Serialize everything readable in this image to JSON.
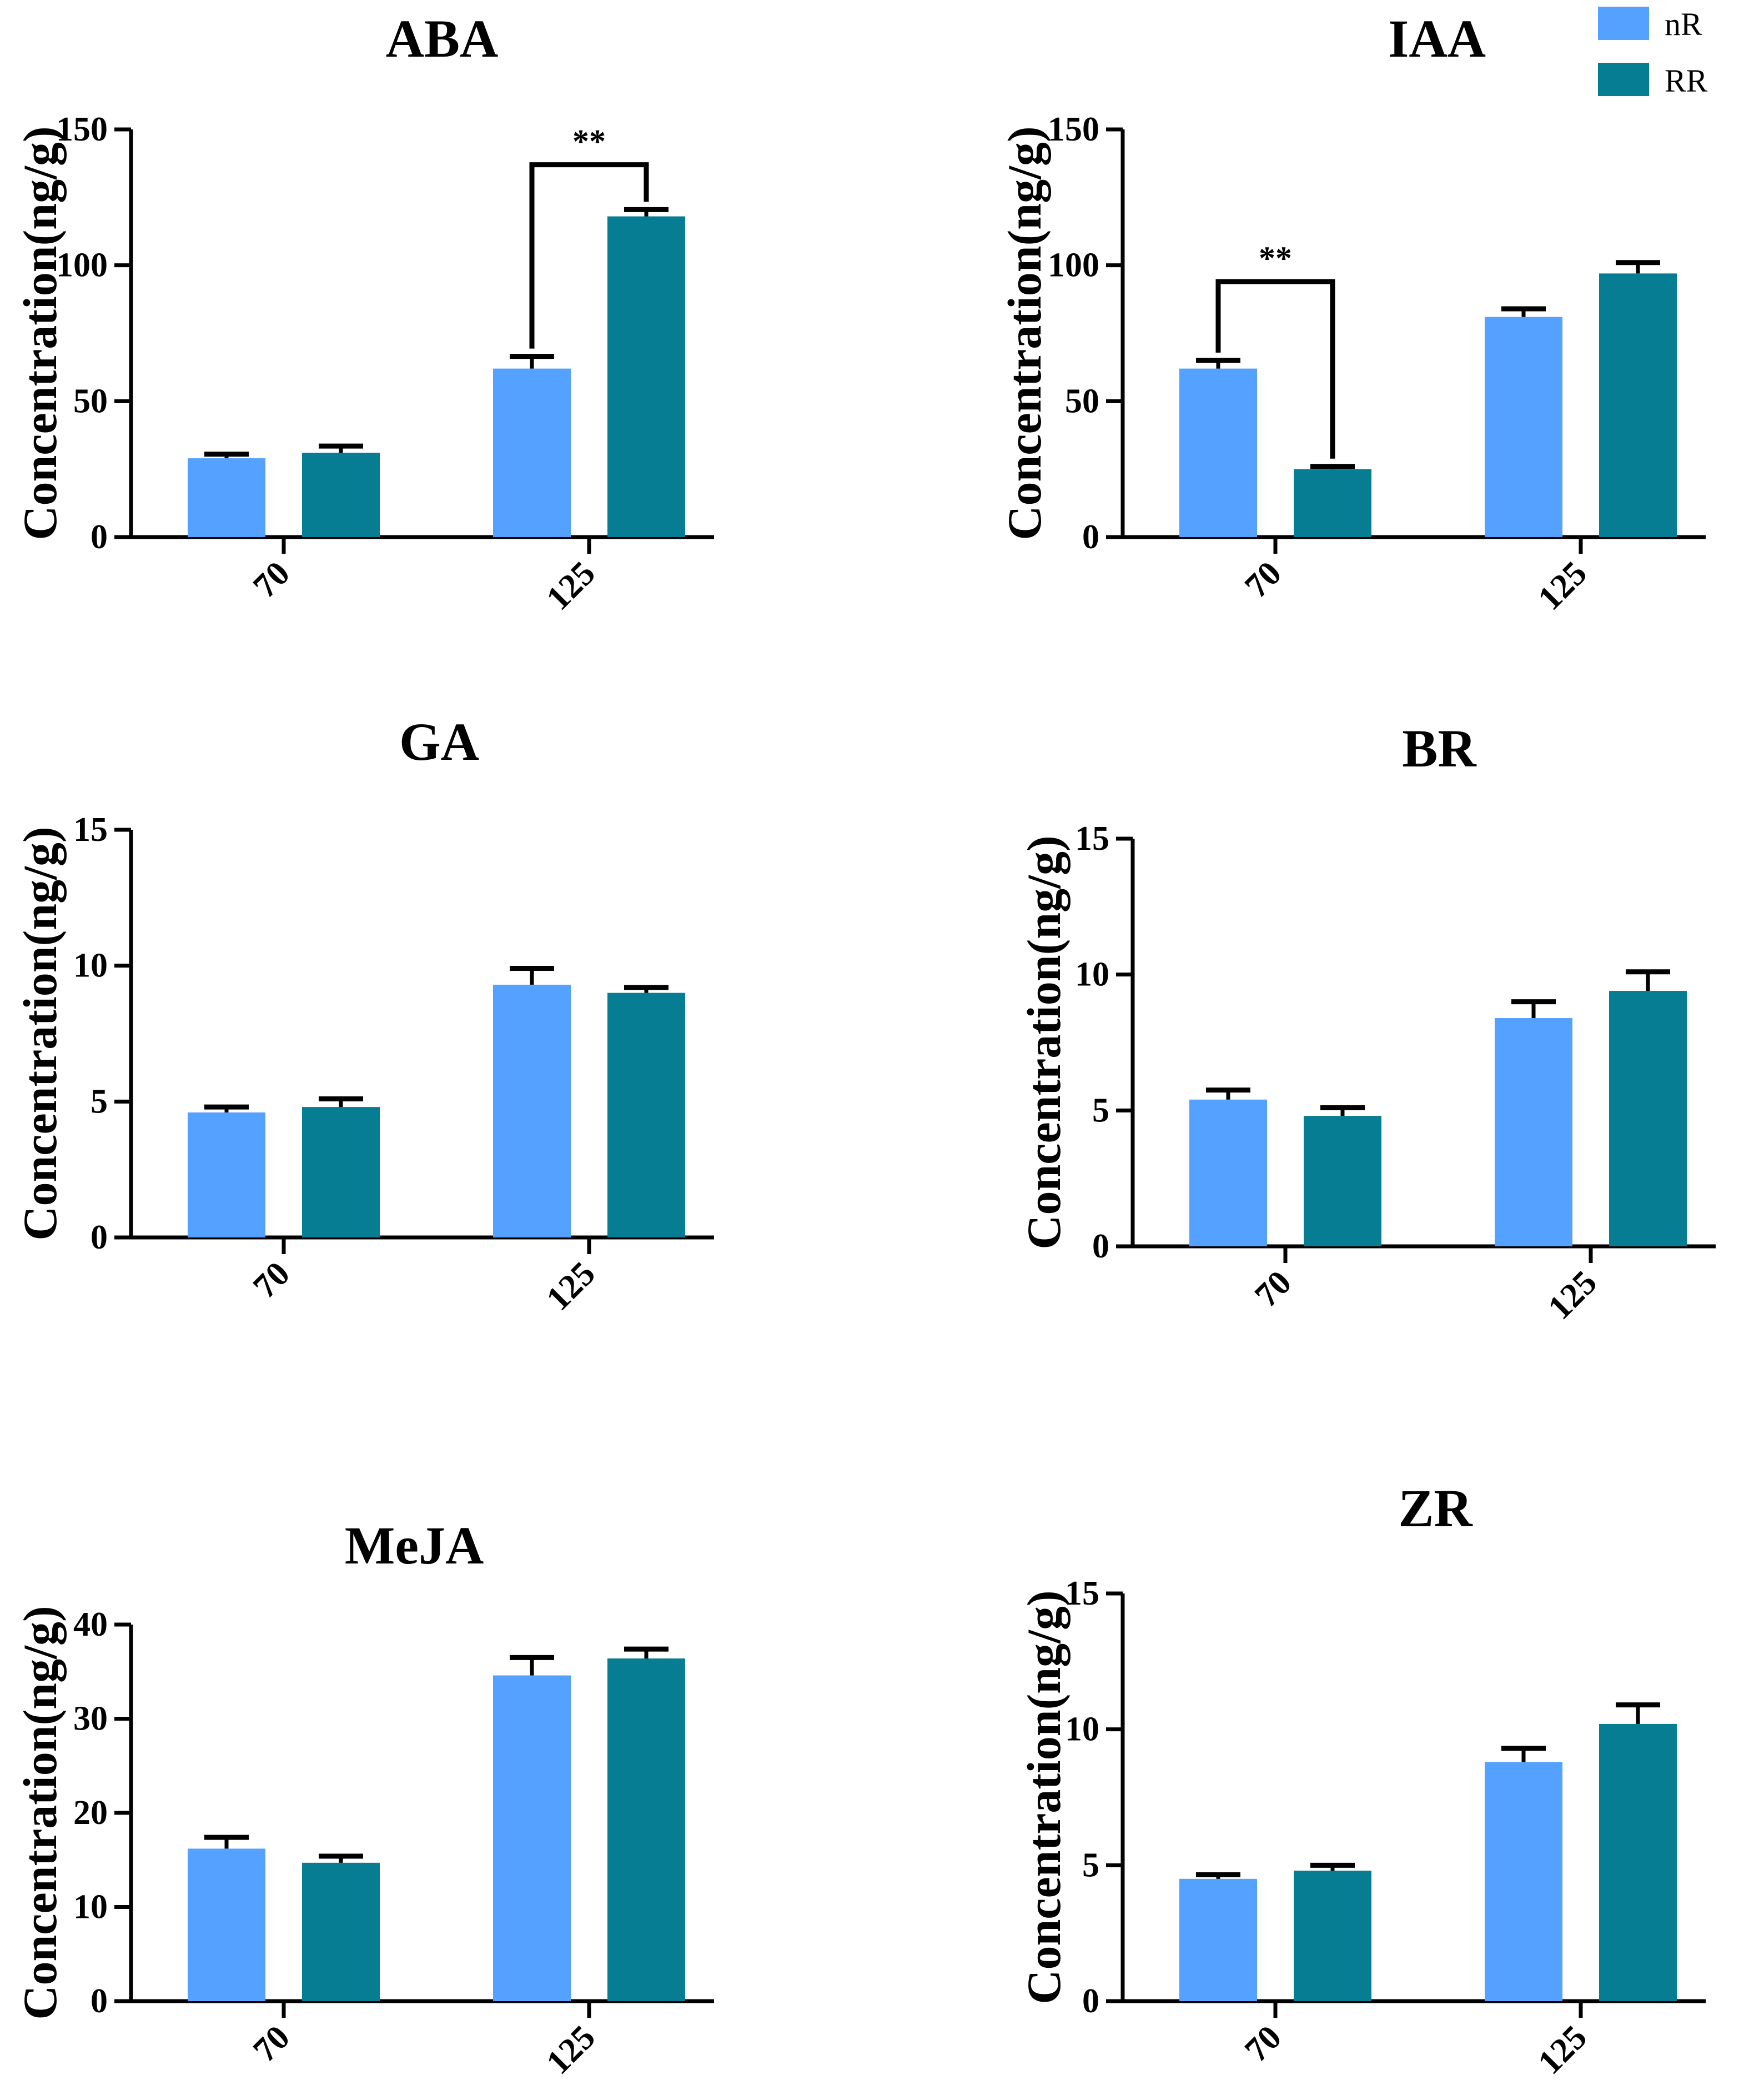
{
  "legend": [
    {
      "name": "nR",
      "color": "#55A1FF"
    },
    {
      "name": "RR",
      "color": "#067D92"
    }
  ],
  "chart_data": [
    {
      "type": "bar",
      "title": "ABA",
      "ylabel": "Concentration(ng/g)",
      "xlabel": "",
      "categories": [
        "70",
        "125"
      ],
      "ylim": [
        0,
        150
      ],
      "yticks": [
        "0",
        "50",
        "100",
        "150"
      ],
      "series": [
        {
          "name": "nR",
          "values": [
            29,
            62
          ],
          "errors": [
            1.5,
            4.5
          ]
        },
        {
          "name": "RR",
          "values": [
            31,
            118
          ],
          "errors": [
            2.5,
            2.5
          ]
        }
      ],
      "annotations": [
        {
          "text": "**",
          "category": 1,
          "level": 137
        }
      ]
    },
    {
      "type": "bar",
      "title": "IAA",
      "ylabel": "Concentration(ng/g)",
      "xlabel": "",
      "categories": [
        "70",
        "125"
      ],
      "ylim": [
        0,
        150
      ],
      "yticks": [
        "0",
        "50",
        "100",
        "150"
      ],
      "series": [
        {
          "name": "nR",
          "values": [
            62,
            81
          ],
          "errors": [
            3,
            3
          ]
        },
        {
          "name": "RR",
          "values": [
            25,
            97
          ],
          "errors": [
            1,
            4
          ]
        }
      ],
      "annotations": [
        {
          "text": "**",
          "category": 0,
          "level": 94
        }
      ]
    },
    {
      "type": "bar",
      "title": "GA",
      "ylabel": "Concentration(ng/g)",
      "xlabel": "",
      "categories": [
        "70",
        "125"
      ],
      "ylim": [
        0,
        15
      ],
      "yticks": [
        "0",
        "5",
        "10",
        "15"
      ],
      "series": [
        {
          "name": "nR",
          "values": [
            4.6,
            9.3
          ],
          "errors": [
            0.2,
            0.6
          ]
        },
        {
          "name": "RR",
          "values": [
            4.8,
            9.0
          ],
          "errors": [
            0.3,
            0.2
          ]
        }
      ]
    },
    {
      "type": "bar",
      "title": "BR",
      "ylabel": "Concentration(ng/g)",
      "xlabel": "",
      "categories": [
        "70",
        "125"
      ],
      "ylim": [
        0,
        15
      ],
      "yticks": [
        "0",
        "5",
        "10",
        "15"
      ],
      "series": [
        {
          "name": "nR",
          "values": [
            5.4,
            8.4
          ],
          "errors": [
            0.35,
            0.6
          ]
        },
        {
          "name": "RR",
          "values": [
            4.8,
            9.4
          ],
          "errors": [
            0.3,
            0.7
          ]
        }
      ]
    },
    {
      "type": "bar",
      "title": "MeJA",
      "ylabel": "Concentration(ng/g)",
      "xlabel": "",
      "categories": [
        "70",
        "125"
      ],
      "ylim": [
        0,
        40
      ],
      "yticks": [
        "0",
        "10",
        "20",
        "30",
        "40"
      ],
      "series": [
        {
          "name": "nR",
          "values": [
            16.2,
            34.6
          ],
          "errors": [
            1.2,
            1.9
          ]
        },
        {
          "name": "RR",
          "values": [
            14.7,
            36.4
          ],
          "errors": [
            0.7,
            1.0
          ]
        }
      ]
    },
    {
      "type": "bar",
      "title": "ZR",
      "ylabel": "Concentration(ng/g)",
      "xlabel": "",
      "categories": [
        "70",
        "125"
      ],
      "ylim": [
        0,
        15
      ],
      "yticks": [
        "0",
        "5",
        "10",
        "15"
      ],
      "series": [
        {
          "name": "nR",
          "values": [
            4.5,
            8.8
          ],
          "errors": [
            0.15,
            0.5
          ]
        },
        {
          "name": "RR",
          "values": [
            4.8,
            10.2
          ],
          "errors": [
            0.2,
            0.7
          ]
        }
      ]
    }
  ]
}
